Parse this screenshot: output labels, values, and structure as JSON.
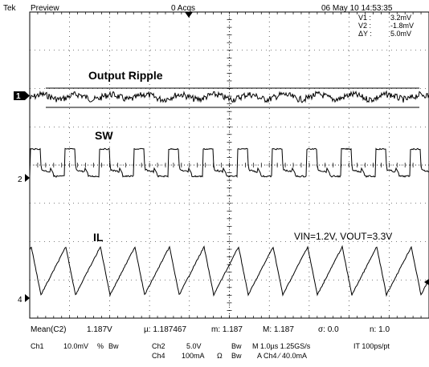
{
  "header": {
    "brand": "Tek",
    "mode": "Preview",
    "acqs": "0 Acqs",
    "datetime": "06 May 10 14:53:35"
  },
  "cursor_readout": {
    "v1_label": "V1 :",
    "v1_value": "3.2mV",
    "v2_label": "V2 :",
    "v2_value": "-1.8mV",
    "dv_label": "ΔY :",
    "dv_value": "5.0mV"
  },
  "traces": {
    "ripple_label": "Output Ripple",
    "sw_label": "SW",
    "il_label": "IL",
    "ch1_marker": "1",
    "ch2_marker": "2",
    "ch4_marker": "4"
  },
  "annotation": "VIN=1.2V, VOUT=3.3V",
  "measurements": {
    "name": "Mean(C2)",
    "value": "1.187V",
    "mu": "µ: 1.187467",
    "min": "m: 1.187",
    "max": "M: 1.187",
    "sigma": "σ: 0.0",
    "n": "n: 1.0"
  },
  "settings": {
    "ch1": "Ch1",
    "ch1_scale": "10.0mV",
    "ch1_coupling": "%",
    "ch1_bw": "Bw",
    "ch2": "Ch2",
    "ch2_scale": "5.0V",
    "ch2_bw": "Bw",
    "ch4": "Ch4",
    "ch4_scale": "100mA",
    "ch4_term": "Ω",
    "ch4_bw": "Bw",
    "timebase": "M 1.0µs 1.25GS/s",
    "interp": "IT 100ps/pt",
    "trigger": "A Ch4 ⁄ 40.0mA"
  },
  "colors": {
    "trace": "#000000",
    "grid": "#000000",
    "background": "#ffffff"
  }
}
